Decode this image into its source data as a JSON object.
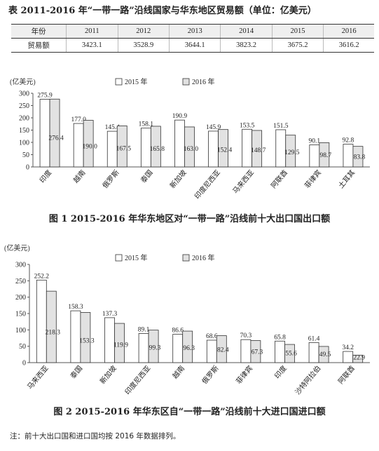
{
  "table": {
    "title": "表 2011-2016 年“一带一路”沿线国家与华东地区贸易额（单位：亿美元）",
    "header_label": "年份",
    "years": [
      "2011",
      "2012",
      "2013",
      "2014",
      "2015",
      "2016"
    ],
    "row_label": "贸易额",
    "values": [
      "3423.1",
      "3528.9",
      "3644.1",
      "3823.2",
      "3675.2",
      "3616.2"
    ]
  },
  "chart_data": [
    {
      "type": "bar",
      "title": "图 1 2015-2016 年华东地区对“一带一路”沿线前十大出口国出口额",
      "ylabel": "(亿美元)",
      "ylim": [
        0,
        300
      ],
      "yticks": [
        0,
        50,
        100,
        150,
        200,
        250,
        300
      ],
      "legend_position": "top",
      "categories": [
        "印度",
        "越南",
        "俄罗斯",
        "泰国",
        "新加坡",
        "印度尼西亚",
        "马来西亚",
        "阿联酋",
        "菲律宾",
        "土耳其"
      ],
      "series": [
        {
          "name": "2015 年",
          "color": "#ffffff",
          "values": [
            275.9,
            177.0,
            145.4,
            158.1,
            190.9,
            145.9,
            153.5,
            151.5,
            90.1,
            92.8
          ]
        },
        {
          "name": "2016 年",
          "color": "#e2e2e2",
          "values": [
            276.4,
            190.0,
            167.5,
            165.8,
            163.0,
            152.4,
            148.7,
            129.5,
            98.7,
            83.8
          ]
        }
      ],
      "value_labels": [
        [
          "275.9",
          "177.0",
          "145.4",
          "158.1",
          "190.9",
          "145.9",
          "153.5",
          "151.5",
          "90.1",
          "92.8"
        ],
        [
          "276.4",
          "190.0",
          "167.5",
          "165.8",
          "163.0",
          "152.4",
          "148.7",
          "129.5",
          "98.7",
          "83.8"
        ]
      ]
    },
    {
      "type": "bar",
      "title": "图 2 2015-2016 年华东区自“一带一路”沿线前十大进口国进口额",
      "ylabel": "(亿美元)",
      "ylim": [
        0,
        300
      ],
      "yticks": [
        0,
        50,
        100,
        150,
        200,
        250,
        300
      ],
      "legend_position": "top",
      "categories": [
        "马来西亚",
        "泰国",
        "新加坡",
        "印度尼西亚",
        "越南",
        "俄罗斯",
        "菲律宾",
        "印度",
        "沙特阿拉伯",
        "阿联酋"
      ],
      "series": [
        {
          "name": "2015 年",
          "color": "#ffffff",
          "values": [
            252.2,
            158.3,
            137.3,
            89.1,
            86.6,
            68.6,
            70.3,
            65.8,
            61.4,
            34.2
          ]
        },
        {
          "name": "2016 年",
          "color": "#e2e2e2",
          "values": [
            218.3,
            153.3,
            119.9,
            99.3,
            96.3,
            82.4,
            67.3,
            55.6,
            49.5,
            22.9
          ]
        }
      ],
      "value_labels": [
        [
          "252.2",
          "158.3",
          "137.3",
          "89.1",
          "86.6",
          "68.6",
          "70.3",
          "65.8",
          "61.4",
          "34.2"
        ],
        [
          "218.3",
          "153.3",
          "119.9",
          "99.3",
          "96.3",
          "82.4",
          "67.3",
          "55.6",
          "49.5",
          "22.9"
        ]
      ]
    }
  ],
  "note": "注：前十大出口国和进口国均按 2016 年数据排列。"
}
